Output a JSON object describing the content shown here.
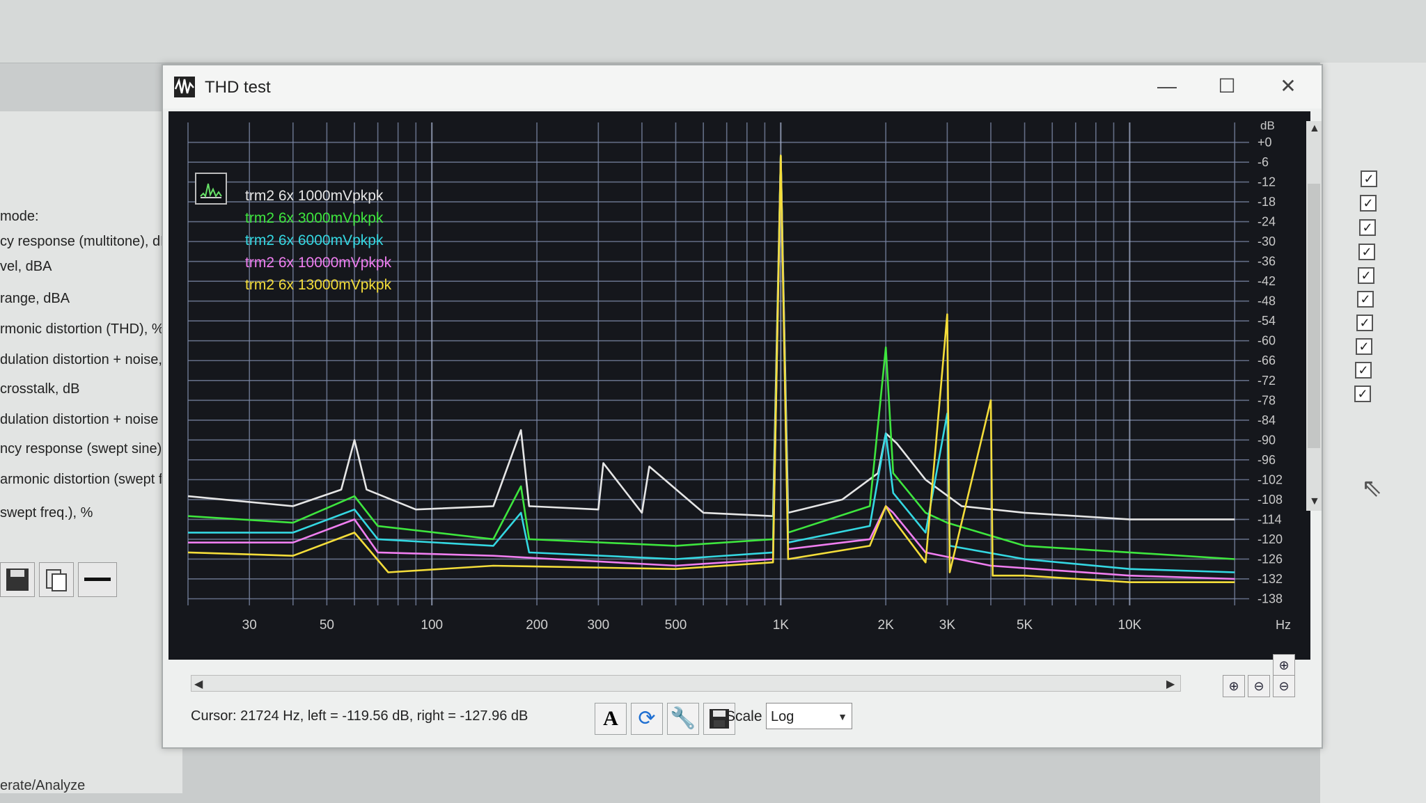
{
  "window": {
    "title": "THD test",
    "controls": {
      "minimize": "—",
      "maximize": "☐",
      "close": "✕"
    }
  },
  "left_panel": {
    "items": [
      "mode:",
      "cy response (multitone), dB",
      "vel, dBA",
      "range, dBA",
      "rmonic distortion (THD), %",
      "dulation distortion + noise, %",
      "crosstalk, dB",
      "dulation distortion + noise (s",
      "ncy response (swept sine), c",
      "armonic distortion (swept fre",
      "swept freq.), %"
    ],
    "footer": "erate/Analyze"
  },
  "right_panel": {
    "checked_count": 10
  },
  "legend": [
    {
      "label": "trm2 6x 1000mVpkpk",
      "color": "#e6e6e6"
    },
    {
      "label": "trm2 6x 3000mVpkpk",
      "color": "#3ee63e"
    },
    {
      "label": "trm2 6x 6000mVpkpk",
      "color": "#34d8e2"
    },
    {
      "label": "trm2 6x 10000mVpkpk",
      "color": "#f07ef0"
    },
    {
      "label": "trm2 6x 13000mVpkpk",
      "color": "#f4dd3a"
    }
  ],
  "chart_data": {
    "type": "line",
    "xscale": "log",
    "xlim": [
      20,
      22000
    ],
    "ylim": [
      -140,
      6
    ],
    "y_unit": "dB",
    "x_unit": "Hz",
    "x_ticks": [
      {
        "v": 30,
        "label": "30"
      },
      {
        "v": 50,
        "label": "50"
      },
      {
        "v": 100,
        "label": "100"
      },
      {
        "v": 200,
        "label": "200"
      },
      {
        "v": 300,
        "label": "300"
      },
      {
        "v": 500,
        "label": "500"
      },
      {
        "v": 1000,
        "label": "1K"
      },
      {
        "v": 2000,
        "label": "2K"
      },
      {
        "v": 3000,
        "label": "3K"
      },
      {
        "v": 5000,
        "label": "5K"
      },
      {
        "v": 10000,
        "label": "10K"
      }
    ],
    "y_ticks": [
      {
        "v": 0,
        "label": "+0"
      },
      {
        "v": -6,
        "label": "-6"
      },
      {
        "v": -12,
        "label": "-12"
      },
      {
        "v": -18,
        "label": "-18"
      },
      {
        "v": -24,
        "label": "-24"
      },
      {
        "v": -30,
        "label": "-30"
      },
      {
        "v": -36,
        "label": "-36"
      },
      {
        "v": -42,
        "label": "-42"
      },
      {
        "v": -48,
        "label": "-48"
      },
      {
        "v": -54,
        "label": "-54"
      },
      {
        "v": -60,
        "label": "-60"
      },
      {
        "v": -66,
        "label": "-66"
      },
      {
        "v": -72,
        "label": "-72"
      },
      {
        "v": -78,
        "label": "-78"
      },
      {
        "v": -84,
        "label": "-84"
      },
      {
        "v": -90,
        "label": "-90"
      },
      {
        "v": -96,
        "label": "-96"
      },
      {
        "v": -102,
        "label": "-102"
      },
      {
        "v": -108,
        "label": "-108"
      },
      {
        "v": -114,
        "label": "-114"
      },
      {
        "v": -120,
        "label": "-120"
      },
      {
        "v": -126,
        "label": "-126"
      },
      {
        "v": -132,
        "label": "-132"
      },
      {
        "v": -138,
        "label": "-138"
      }
    ],
    "series": [
      {
        "name": "trm2 6x 1000mVpkpk",
        "color": "#e6e6e6",
        "points": [
          [
            20,
            -107
          ],
          [
            40,
            -110
          ],
          [
            55,
            -105
          ],
          [
            60,
            -90
          ],
          [
            65,
            -105
          ],
          [
            90,
            -111
          ],
          [
            150,
            -110
          ],
          [
            180,
            -87
          ],
          [
            190,
            -110
          ],
          [
            300,
            -111
          ],
          [
            310,
            -97
          ],
          [
            400,
            -112
          ],
          [
            420,
            -98
          ],
          [
            600,
            -112
          ],
          [
            950,
            -113
          ],
          [
            1000,
            -4
          ],
          [
            1050,
            -112
          ],
          [
            1500,
            -108
          ],
          [
            1900,
            -100
          ],
          [
            2000,
            -88
          ],
          [
            2150,
            -91
          ],
          [
            2600,
            -102
          ],
          [
            3300,
            -110
          ],
          [
            5000,
            -112
          ],
          [
            10000,
            -114
          ],
          [
            20000,
            -114
          ]
        ]
      },
      {
        "name": "trm2 6x 3000mVpkpk",
        "color": "#3ee63e",
        "points": [
          [
            20,
            -113
          ],
          [
            40,
            -115
          ],
          [
            60,
            -107
          ],
          [
            70,
            -116
          ],
          [
            150,
            -120
          ],
          [
            180,
            -104
          ],
          [
            190,
            -120
          ],
          [
            500,
            -122
          ],
          [
            950,
            -120
          ],
          [
            1000,
            -4
          ],
          [
            1050,
            -118
          ],
          [
            1800,
            -110
          ],
          [
            2000,
            -62
          ],
          [
            2100,
            -100
          ],
          [
            2600,
            -112
          ],
          [
            3000,
            -115
          ],
          [
            5000,
            -122
          ],
          [
            10000,
            -124
          ],
          [
            20000,
            -126
          ]
        ]
      },
      {
        "name": "trm2 6x 6000mVpkpk",
        "color": "#34d8e2",
        "points": [
          [
            20,
            -118
          ],
          [
            40,
            -118
          ],
          [
            60,
            -111
          ],
          [
            70,
            -120
          ],
          [
            150,
            -122
          ],
          [
            180,
            -112
          ],
          [
            190,
            -124
          ],
          [
            500,
            -126
          ],
          [
            950,
            -124
          ],
          [
            1000,
            -4
          ],
          [
            1050,
            -121
          ],
          [
            1800,
            -116
          ],
          [
            2000,
            -88
          ],
          [
            2100,
            -106
          ],
          [
            2600,
            -118
          ],
          [
            3000,
            -82
          ],
          [
            3050,
            -122
          ],
          [
            5000,
            -126
          ],
          [
            10000,
            -129
          ],
          [
            20000,
            -130
          ]
        ]
      },
      {
        "name": "trm2 6x 10000mVpkpk",
        "color": "#f07ef0",
        "points": [
          [
            20,
            -121
          ],
          [
            40,
            -121
          ],
          [
            60,
            -114
          ],
          [
            70,
            -124
          ],
          [
            150,
            -125
          ],
          [
            500,
            -128
          ],
          [
            950,
            -126
          ],
          [
            1000,
            -4
          ],
          [
            1050,
            -123
          ],
          [
            1800,
            -120
          ],
          [
            2000,
            -110
          ],
          [
            2100,
            -112
          ],
          [
            2600,
            -124
          ],
          [
            4000,
            -128
          ],
          [
            10000,
            -131
          ],
          [
            20000,
            -132
          ]
        ]
      },
      {
        "name": "trm2 6x 13000mVpkpk",
        "color": "#f4dd3a",
        "points": [
          [
            20,
            -124
          ],
          [
            40,
            -125
          ],
          [
            60,
            -118
          ],
          [
            75,
            -130
          ],
          [
            150,
            -128
          ],
          [
            500,
            -129
          ],
          [
            950,
            -127
          ],
          [
            1000,
            -4
          ],
          [
            1050,
            -126
          ],
          [
            1800,
            -122
          ],
          [
            2000,
            -110
          ],
          [
            2100,
            -114
          ],
          [
            2600,
            -127
          ],
          [
            3000,
            -52
          ],
          [
            3050,
            -130
          ],
          [
            4000,
            -78
          ],
          [
            4050,
            -131
          ],
          [
            5000,
            -131
          ],
          [
            10000,
            -133
          ],
          [
            20000,
            -133
          ]
        ]
      }
    ]
  },
  "axis_units": {
    "y": "dB",
    "x": "Hz"
  },
  "status": {
    "cursor_text": "Cursor: 21724 Hz, left = -119.56 dB, right = -127.96 dB",
    "scale_label": "Scale",
    "scale_value": "Log"
  }
}
